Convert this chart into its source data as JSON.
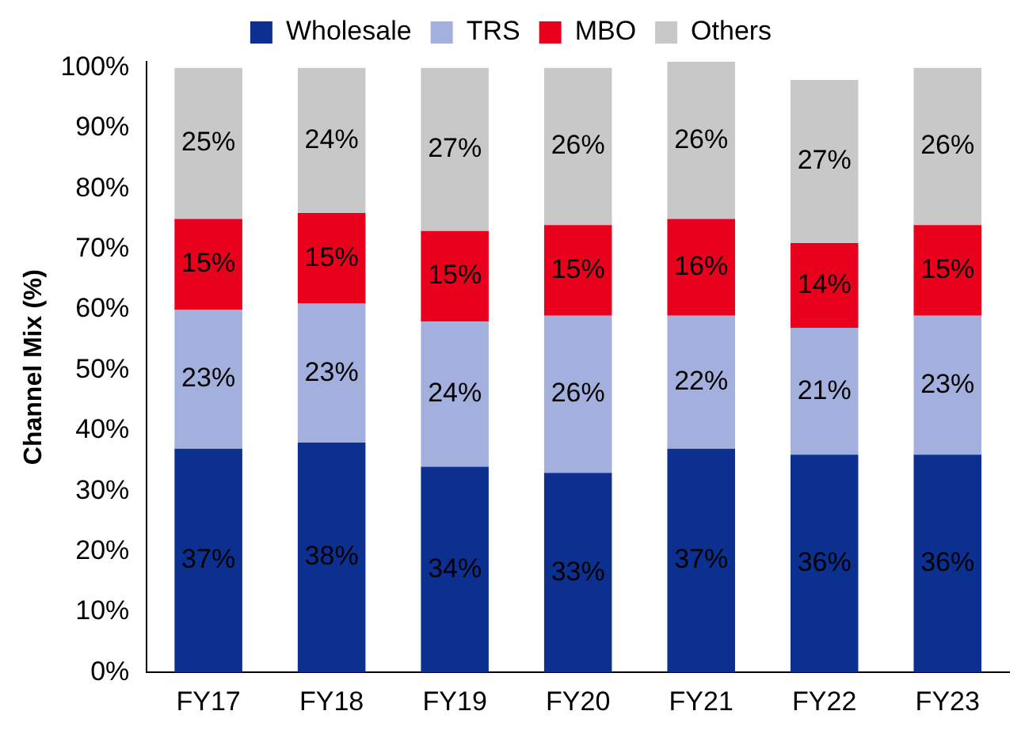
{
  "chart_data": {
    "type": "bar",
    "stacked": true,
    "ylabel": "Channel Mix (%)",
    "legend": "top",
    "grid": false,
    "categories": [
      "FY17",
      "FY18",
      "FY19",
      "FY20",
      "FY21",
      "FY22",
      "FY23"
    ],
    "ylim": [
      0,
      101
    ],
    "yticks": [
      {
        "value": 0,
        "label": "0%"
      },
      {
        "value": 10,
        "label": "10%"
      },
      {
        "value": 20,
        "label": "20%"
      },
      {
        "value": 30,
        "label": "30%"
      },
      {
        "value": 40,
        "label": "40%"
      },
      {
        "value": 50,
        "label": "50%"
      },
      {
        "value": 60,
        "label": "60%"
      },
      {
        "value": 70,
        "label": "70%"
      },
      {
        "value": 80,
        "label": "80%"
      },
      {
        "value": 90,
        "label": "90%"
      },
      {
        "value": 100,
        "label": "100%"
      }
    ],
    "series": [
      {
        "name": "Wholesale",
        "color": "#0b3090",
        "values": [
          37,
          38,
          34,
          33,
          37,
          36,
          36
        ],
        "value_labels": [
          "37%",
          "38%",
          "34%",
          "33%",
          "37%",
          "36%",
          "36%"
        ]
      },
      {
        "name": "TRS",
        "color": "#a3afdc",
        "values": [
          23,
          23,
          24,
          26,
          22,
          21,
          23
        ],
        "value_labels": [
          "23%",
          "23%",
          "24%",
          "26%",
          "22%",
          "21%",
          "23%"
        ]
      },
      {
        "name": "MBO",
        "color": "#e8001c",
        "values": [
          15,
          15,
          15,
          15,
          16,
          14,
          15
        ],
        "value_labels": [
          "15%",
          "15%",
          "15%",
          "15%",
          "16%",
          "14%",
          "15%"
        ]
      },
      {
        "name": "Others",
        "color": "#c8c8c8",
        "values": [
          25,
          24,
          27,
          26,
          26,
          27,
          26
        ],
        "value_labels": [
          "25%",
          "24%",
          "27%",
          "26%",
          "26%",
          "27%",
          "26%"
        ]
      }
    ]
  }
}
